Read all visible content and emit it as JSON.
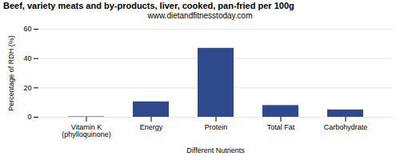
{
  "chart_data": {
    "type": "bar",
    "title": "Beef, variety meats and by-products, liver, cooked, pan-fried per 100g",
    "subtitle": "www.dietandfitnesstoday.com",
    "xlabel": "Different Nutrients",
    "ylabel": "Percentage of RDH (%)",
    "categories": [
      "Vitamin K (phylloquinone)",
      "Energy",
      "Protein",
      "Total Fat",
      "Carbohydrate"
    ],
    "values": [
      0.3,
      10.5,
      47.0,
      8.0,
      5.0
    ],
    "color": "#2e4a8c",
    "ylim": [
      0,
      60
    ],
    "yticks": [
      0,
      20,
      40,
      60
    ],
    "grid": true
  }
}
